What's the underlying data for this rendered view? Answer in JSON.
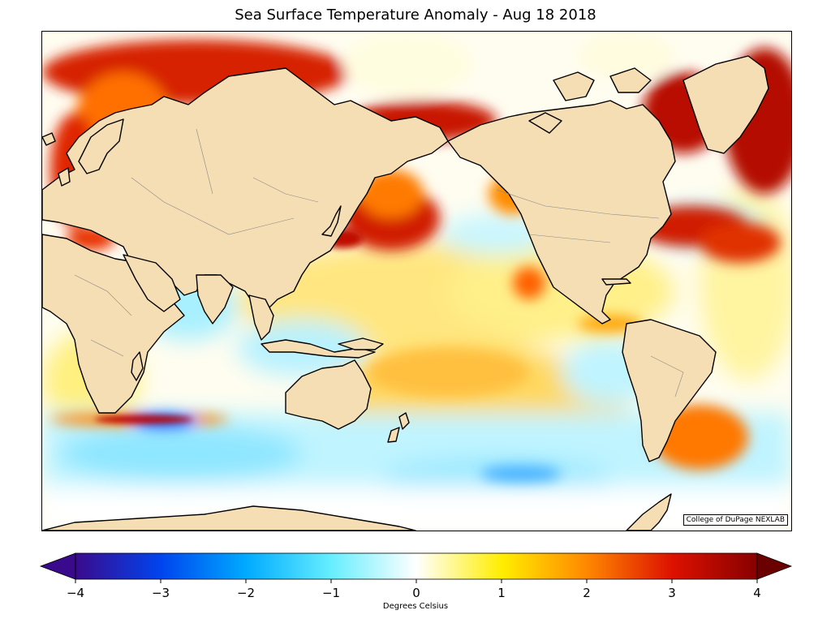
{
  "title": "Sea Surface Temperature Anomaly - Aug 18 2018",
  "credit": "College of DuPage NEXLAB",
  "colorbar": {
    "label": "Degrees Celsius",
    "min": -4,
    "max": 4,
    "ticks": [
      {
        "value": -4,
        "label": "−4"
      },
      {
        "value": -3,
        "label": "−3"
      },
      {
        "value": -2,
        "label": "−2"
      },
      {
        "value": -1,
        "label": "−1"
      },
      {
        "value": 0,
        "label": "0"
      },
      {
        "value": 1,
        "label": "1"
      },
      {
        "value": 2,
        "label": "2"
      },
      {
        "value": 3,
        "label": "3"
      },
      {
        "value": 4,
        "label": "4"
      }
    ],
    "colors": [
      "#3a0a8c",
      "#0044ee",
      "#00aaff",
      "#66eeff",
      "#ffffff",
      "#ffee00",
      "#ff8800",
      "#dd1100",
      "#880000"
    ],
    "extends": "both"
  },
  "colors": {
    "land": "#f5deb3",
    "ocean_neutral": "#ffffff"
  }
}
